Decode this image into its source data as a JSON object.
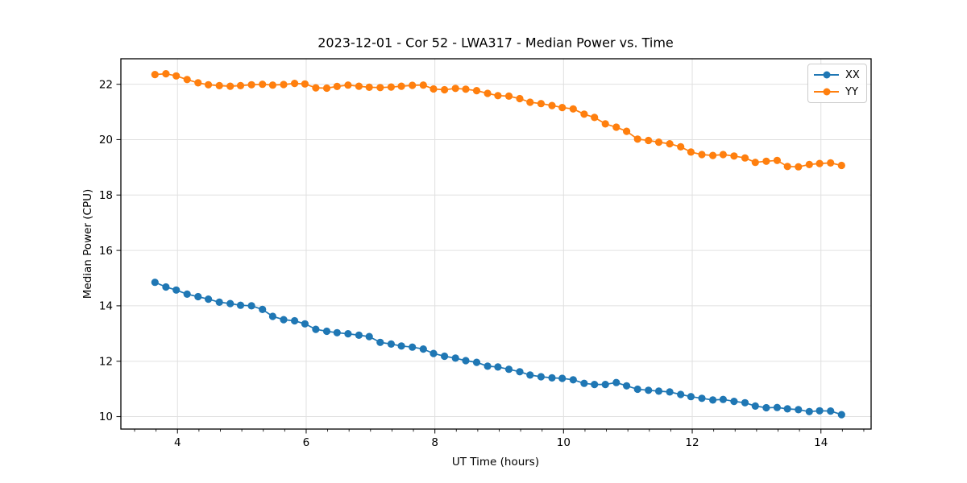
{
  "figure": {
    "background": "#ffffff",
    "grid_color": "#e0e0e0",
    "spine_color": "#000000",
    "tick_color": "#1a1a1a",
    "text_color": "#000000"
  },
  "chart_data": {
    "type": "line",
    "title": "2023-12-01 - Cor 52 - LWA317 - Median Power vs. Time",
    "xlabel": "UT Time (hours)",
    "ylabel": "Median Power (CPU)",
    "xlim": [
      3.12,
      14.78
    ],
    "ylim": [
      9.55,
      22.92
    ],
    "xticks": [
      4,
      6,
      8,
      10,
      12,
      14
    ],
    "yticks": [
      10,
      12,
      14,
      16,
      18,
      20,
      22
    ],
    "x_minor_step": 0.3333,
    "grid": true,
    "legend_position": "upper right",
    "marker": "circle",
    "x": [
      3.65,
      3.82,
      3.98,
      4.15,
      4.32,
      4.48,
      4.65,
      4.82,
      4.98,
      5.15,
      5.32,
      5.48,
      5.65,
      5.82,
      5.98,
      6.15,
      6.32,
      6.48,
      6.65,
      6.82,
      6.98,
      7.15,
      7.32,
      7.48,
      7.65,
      7.82,
      7.98,
      8.15,
      8.32,
      8.48,
      8.65,
      8.82,
      8.98,
      9.15,
      9.32,
      9.48,
      9.65,
      9.82,
      9.98,
      10.15,
      10.32,
      10.48,
      10.65,
      10.82,
      10.98,
      11.15,
      11.32,
      11.48,
      11.65,
      11.82,
      11.98,
      12.15,
      12.32,
      12.48,
      12.65,
      12.82,
      12.98,
      13.15,
      13.32,
      13.48,
      13.65,
      13.82,
      13.98,
      14.15,
      14.32
    ],
    "series": [
      {
        "name": "XX",
        "color": "#1f77b4",
        "values": [
          14.85,
          14.68,
          14.57,
          14.42,
          14.33,
          14.24,
          14.13,
          14.08,
          14.02,
          14.0,
          13.87,
          13.62,
          13.5,
          13.46,
          13.35,
          13.15,
          13.08,
          13.03,
          12.99,
          12.94,
          12.89,
          12.68,
          12.62,
          12.55,
          12.51,
          12.44,
          12.28,
          12.18,
          12.11,
          12.02,
          11.96,
          11.82,
          11.79,
          11.71,
          11.62,
          11.5,
          11.44,
          11.4,
          11.38,
          11.33,
          11.2,
          11.16,
          11.16,
          11.23,
          11.11,
          10.99,
          10.95,
          10.92,
          10.89,
          10.8,
          10.72,
          10.66,
          10.6,
          10.62,
          10.55,
          10.5,
          10.38,
          10.32,
          10.33,
          10.28,
          10.25,
          10.18,
          10.21,
          10.2,
          10.07
        ]
      },
      {
        "name": "YY",
        "color": "#ff7f0e",
        "values": [
          22.35,
          22.38,
          22.3,
          22.17,
          22.05,
          21.98,
          21.95,
          21.93,
          21.95,
          21.98,
          22.0,
          21.97,
          21.99,
          22.03,
          22.01,
          21.87,
          21.86,
          21.92,
          21.97,
          21.93,
          21.89,
          21.88,
          21.9,
          21.93,
          21.96,
          21.97,
          21.83,
          21.8,
          21.85,
          21.82,
          21.77,
          21.67,
          21.59,
          21.57,
          21.48,
          21.35,
          21.3,
          21.23,
          21.16,
          21.11,
          20.92,
          20.8,
          20.57,
          20.45,
          20.3,
          20.02,
          19.97,
          19.91,
          19.85,
          19.74,
          19.55,
          19.46,
          19.43,
          19.46,
          19.41,
          19.34,
          19.18,
          19.22,
          19.25,
          19.03,
          19.02,
          19.1,
          19.14,
          19.16,
          19.07
        ]
      }
    ]
  }
}
